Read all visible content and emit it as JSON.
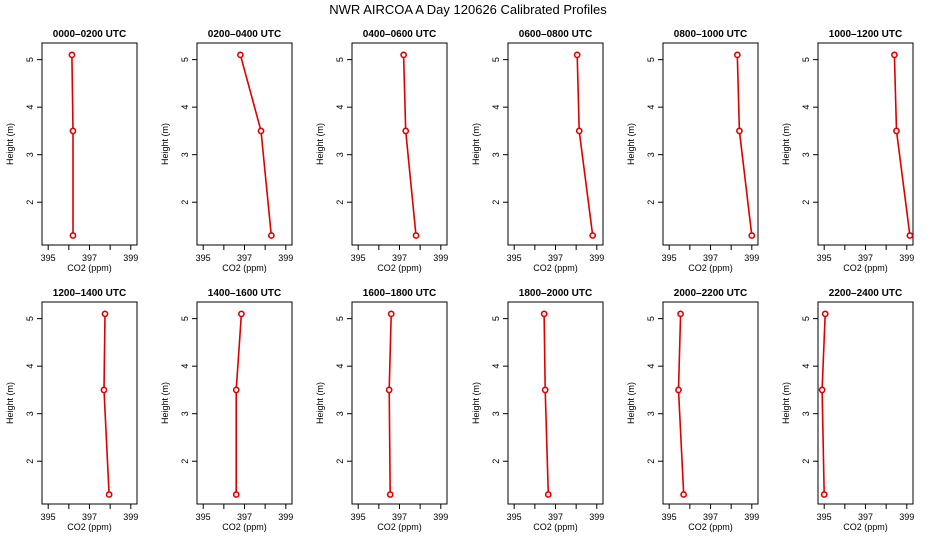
{
  "title": "NWR AIRCOA A  Day 120626  Calibrated Profiles",
  "colors": {
    "line": "#dd0000",
    "marker": "#dd0000",
    "axis": "#000000"
  },
  "chart_data": {
    "type": "line",
    "title": "NWR AIRCOA A  Day 120626  Calibrated Profiles",
    "xlabel": "CO2 (ppm)",
    "ylabel": "Height (m)",
    "xlim": [
      394.7,
      399.3
    ],
    "ylim": [
      1.1,
      5.35
    ],
    "xticks": [
      "395",
      "397",
      "399"
    ],
    "xminor": [
      396,
      398
    ],
    "yticks": [
      "2",
      "3",
      "4",
      "5"
    ],
    "grid": false,
    "legend": "none",
    "heights": [
      1.3,
      3.5,
      5.1
    ],
    "panels": [
      {
        "title": "0000–0200 UTC",
        "co2": [
          396.2,
          396.2,
          396.15
        ]
      },
      {
        "title": "0200–0400 UTC",
        "co2": [
          398.3,
          397.8,
          396.8
        ]
      },
      {
        "title": "0400–0600 UTC",
        "co2": [
          397.8,
          397.3,
          397.2
        ]
      },
      {
        "title": "0600–0800 UTC",
        "co2": [
          398.8,
          398.15,
          398.05
        ]
      },
      {
        "title": "0800–1000 UTC",
        "co2": [
          399.0,
          398.4,
          398.3
        ]
      },
      {
        "title": "1000–1200 UTC",
        "co2": [
          399.15,
          398.5,
          398.4
        ]
      },
      {
        "title": "1200–1400 UTC",
        "co2": [
          397.95,
          397.7,
          397.75
        ]
      },
      {
        "title": "1400–1600 UTC",
        "co2": [
          396.6,
          396.6,
          396.85
        ]
      },
      {
        "title": "1600–1800 UTC",
        "co2": [
          396.55,
          396.5,
          396.6
        ]
      },
      {
        "title": "1800–2000 UTC",
        "co2": [
          396.65,
          396.5,
          396.45
        ]
      },
      {
        "title": "2000–2200 UTC",
        "co2": [
          395.7,
          395.45,
          395.55
        ]
      },
      {
        "title": "2200–2400 UTC",
        "co2": [
          395.0,
          394.9,
          395.05
        ]
      }
    ]
  }
}
